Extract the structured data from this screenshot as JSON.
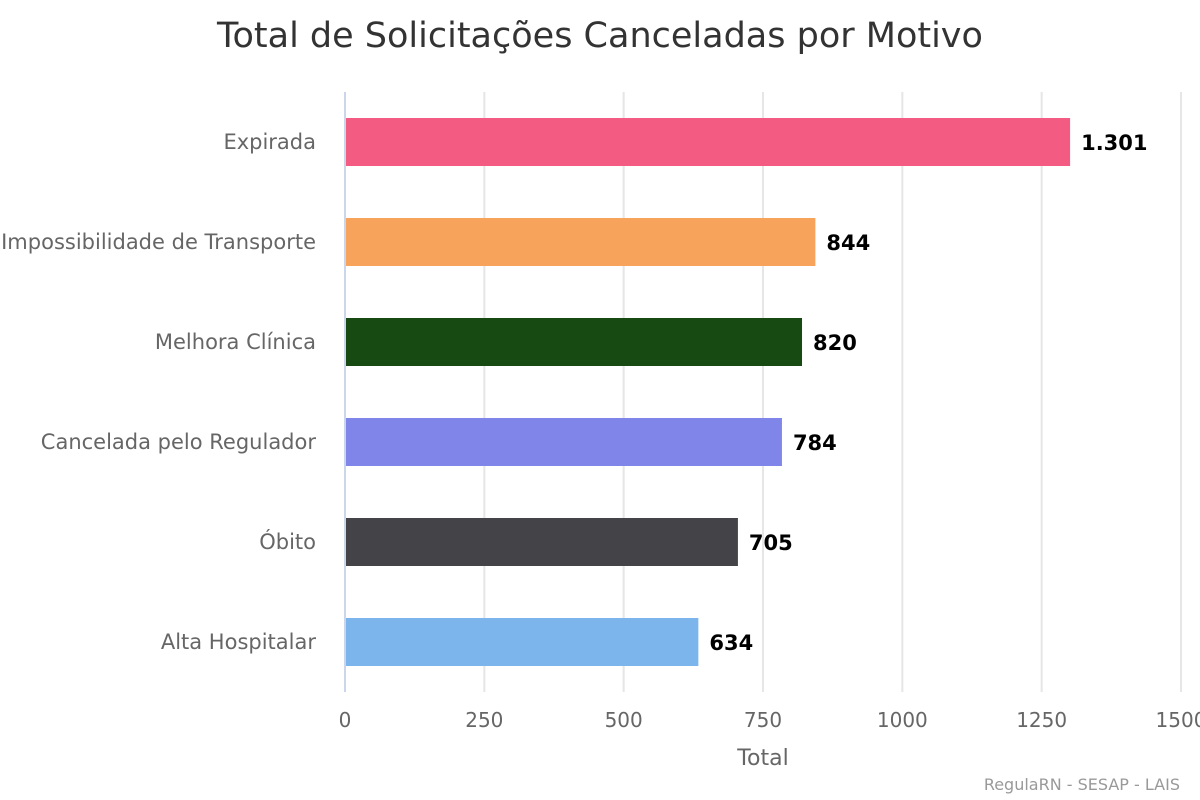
{
  "chart_data": {
    "type": "bar",
    "orientation": "horizontal",
    "title": "Total de Solicitações Canceladas por Motivo",
    "xlabel": "Total",
    "xlim": [
      0,
      1500
    ],
    "ticks": [
      "0",
      "250",
      "500",
      "750",
      "1000",
      "1250",
      "1500"
    ],
    "tick_values": [
      0,
      250,
      500,
      750,
      1000,
      1250,
      1500
    ],
    "grid": true,
    "legend": "none",
    "categories": [
      "Expirada",
      "Impossibilidade de Transporte",
      "Melhora Clínica",
      "Cancelada pelo Regulador",
      "Óbito",
      "Alta Hospitalar"
    ],
    "values": [
      1301,
      844,
      820,
      784,
      705,
      634
    ],
    "value_labels": [
      "1.301",
      "844",
      "820",
      "784",
      "705",
      "634"
    ],
    "colors": [
      "#f45b82",
      "#f7a35c",
      "#174a12",
      "#8085e9",
      "#434348",
      "#7cb5ec"
    ]
  },
  "credits": "RegulaRN - SESAP - LAIS"
}
